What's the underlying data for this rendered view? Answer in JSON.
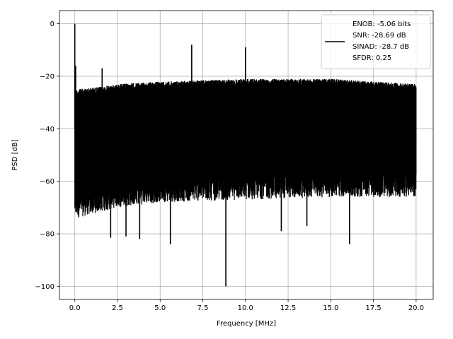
{
  "chart_data": {
    "type": "line",
    "title": "",
    "xlabel": "Frequency [MHz]",
    "ylabel": "PSD [dB]",
    "xlim": [
      -0.9,
      21.0
    ],
    "ylim": [
      -105,
      5
    ],
    "xticks": [
      0.0,
      2.5,
      5.0,
      7.5,
      10.0,
      12.5,
      15.0,
      17.5,
      20.0
    ],
    "xtick_labels": [
      "0.0",
      "2.5",
      "5.0",
      "7.5",
      "10.0",
      "12.5",
      "15.0",
      "17.5",
      "20.0"
    ],
    "yticks": [
      0,
      -20,
      -40,
      -60,
      -80,
      -100
    ],
    "ytick_labels": [
      "0",
      "−20",
      "−40",
      "−60",
      "−80",
      "−100"
    ],
    "grid": true,
    "legend_position": "top-right",
    "line_color": "#000000",
    "noise_band": {
      "x_start": 0.0,
      "x_end": 20.0,
      "upper_envelope": [
        [
          0.1,
          -25
        ],
        [
          1.5,
          -24
        ],
        [
          2.5,
          -23
        ],
        [
          5,
          -22
        ],
        [
          7.5,
          -21.5
        ],
        [
          10,
          -21
        ],
        [
          12.5,
          -21
        ],
        [
          15,
          -21
        ],
        [
          17.5,
          -22
        ],
        [
          20,
          -23
        ]
      ],
      "lower_envelope": [
        [
          0.1,
          -70
        ],
        [
          2.5,
          -66
        ],
        [
          5,
          -64
        ],
        [
          10,
          -63
        ],
        [
          15,
          -62
        ],
        [
          20,
          -62
        ]
      ],
      "floor_y": -40
    },
    "peaks": [
      {
        "x": 0.0,
        "y": 0.0
      },
      {
        "x": 0.05,
        "y": -16
      },
      {
        "x": 1.6,
        "y": -17
      },
      {
        "x": 6.85,
        "y": -8
      },
      {
        "x": 10.0,
        "y": -9
      }
    ],
    "dips": [
      {
        "x": 2.1,
        "y": -81.5
      },
      {
        "x": 3.0,
        "y": -81
      },
      {
        "x": 3.8,
        "y": -82
      },
      {
        "x": 5.6,
        "y": -84
      },
      {
        "x": 8.85,
        "y": -100
      },
      {
        "x": 12.1,
        "y": -79
      },
      {
        "x": 13.6,
        "y": -77
      },
      {
        "x": 16.1,
        "y": -84
      }
    ],
    "legend": {
      "lines": [
        "ENOB: -5.06 bits",
        "SNR: -28.69 dB",
        "SINAD: -28.7 dB",
        "SFDR: 0.25"
      ]
    }
  }
}
